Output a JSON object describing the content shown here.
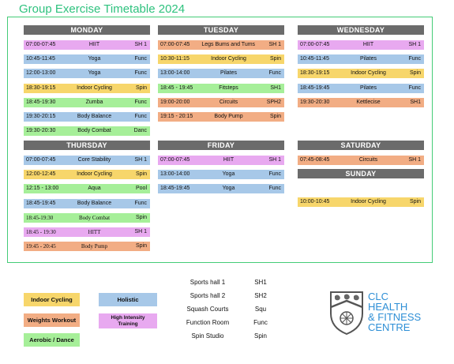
{
  "title": "Group Exercise Timetable 2024",
  "colors": {
    "cycling": "#f7d66b",
    "holistic": "#a7c8e8",
    "weights": "#f2ad84",
    "hit": "#e8a9f0",
    "aerobic": "#a6ef99",
    "header": "#6b6b6b",
    "frame": "#44cc77",
    "brand": "#2e8fd6"
  },
  "days": {
    "monday": {
      "label": "MONDAY",
      "classes": [
        {
          "time": "07:00-07:45",
          "name": "HIIT",
          "room": "SH 1",
          "cat": "hit"
        },
        {
          "time": "10:45-11:45",
          "name": "Yoga",
          "room": "Func",
          "cat": "holistic"
        },
        {
          "time": "12:00-13:00",
          "name": "Yoga",
          "room": "Func",
          "cat": "holistic"
        },
        {
          "time": "18:30-19:15",
          "name": "Indoor Cycling",
          "room": "Spin",
          "cat": "cycling"
        },
        {
          "time": "18:45-19:30",
          "name": "Zumba",
          "room": "Func",
          "cat": "aerobic"
        },
        {
          "time": "19:30-20:15",
          "name": "Body Balance",
          "room": "Func",
          "cat": "holistic"
        },
        {
          "time": "19:30-20:30",
          "name": "Body Combat",
          "room": "Danc",
          "cat": "aerobic"
        }
      ]
    },
    "tuesday": {
      "label": "TUESDAY",
      "classes": [
        {
          "time": "07:00-07:45",
          "name": "Legs Bums and Tums",
          "room": "SH 1",
          "cat": "weights"
        },
        {
          "time": "10:30-11:15",
          "name": "Indoor Cycling",
          "room": "Spin",
          "cat": "cycling"
        },
        {
          "time": "13:00-14:00",
          "name": "Pilates",
          "room": "Func",
          "cat": "holistic"
        },
        {
          "time": "18:45 - 19:45",
          "name": "Fitsteps",
          "room": "SH1",
          "cat": "aerobic"
        },
        {
          "time": "19:00-20:00",
          "name": "Circuits",
          "room": "SPH2",
          "cat": "weights"
        },
        {
          "time": "19:15 - 20:15",
          "name": "Body Pump",
          "room": "Spin",
          "cat": "weights"
        }
      ]
    },
    "wednesday": {
      "label": "WEDNESDAY",
      "classes": [
        {
          "time": "07:00-07:45",
          "name": "HIIT",
          "room": "SH 1",
          "cat": "hit"
        },
        {
          "time": "10:45-11:45",
          "name": "Pilates",
          "room": "Func",
          "cat": "holistic"
        },
        {
          "time": "18:30-19:15",
          "name": "Indoor Cycling",
          "room": "Spin",
          "cat": "cycling"
        },
        {
          "time": "18:45-19:45",
          "name": "Pilates",
          "room": "Func",
          "cat": "holistic"
        },
        {
          "time": "19:30-20:30",
          "name": "Kettlecise",
          "room": "SH1",
          "cat": "weights"
        }
      ]
    },
    "thursday": {
      "label": "THURSDAY",
      "classes": [
        {
          "time": "07:00-07:45",
          "name": "Core Stability",
          "room": "SH 1",
          "cat": "holistic"
        },
        {
          "time": "12:00-12:45",
          "name": "Indoor Cycling",
          "room": "Spin",
          "cat": "cycling"
        },
        {
          "time": "12:15 - 13:00",
          "name": "Aqua",
          "room": "Pool",
          "cat": "aerobic"
        },
        {
          "time": "18:45-19:45",
          "name": "Body Balance",
          "room": "Func",
          "cat": "holistic"
        },
        {
          "time": "18:45-19:30",
          "name": "Body Combat",
          "room": "Spin",
          "cat": "aerobic"
        },
        {
          "time": "18:45 - 19:30",
          "name": "HITT",
          "room": "SH 1",
          "cat": "hit"
        },
        {
          "time": "19:45 - 20:45",
          "name": "Body Pump",
          "room": "Spin",
          "cat": "weights"
        }
      ]
    },
    "friday": {
      "label": "FRIDAY",
      "classes": [
        {
          "time": "07:00-07:45",
          "name": "HIIT",
          "room": "SH 1",
          "cat": "hit"
        },
        {
          "time": "13:00-14:00",
          "name": "Yoga",
          "room": "Func",
          "cat": "holistic"
        },
        {
          "time": "18:45-19:45",
          "name": "Yoga",
          "room": "Func",
          "cat": "holistic"
        }
      ]
    },
    "saturday": {
      "label": "SATURDAY",
      "classes": [
        {
          "time": "07:45-08:45",
          "name": "Circuits",
          "room": "SH 1",
          "cat": "weights"
        }
      ]
    },
    "sunday": {
      "label": "SUNDAY",
      "classes": [
        {
          "time": "10:00-10:45",
          "name": "Indoor Cycling",
          "room": "Spin",
          "cat": "cycling"
        }
      ]
    }
  },
  "legend": {
    "cycling": "Indoor Cycling",
    "holistic": "Holistic",
    "weights": "Weights Workout",
    "hit": "High Intensity Training",
    "aerobic": "Aerobic / Dance"
  },
  "venues": [
    {
      "name": "Sports hall 1",
      "code": "SH1"
    },
    {
      "name": "Sports hall 2",
      "code": "SH2"
    },
    {
      "name": "Squash Courts",
      "code": "Squ"
    },
    {
      "name": "Function Room",
      "code": "Func"
    },
    {
      "name": "Spin Studio",
      "code": "Spin"
    }
  ],
  "brand": {
    "line1": "CLC",
    "line2": "HEALTH",
    "line3": "& FITNESS",
    "line4": "CENTRE"
  }
}
